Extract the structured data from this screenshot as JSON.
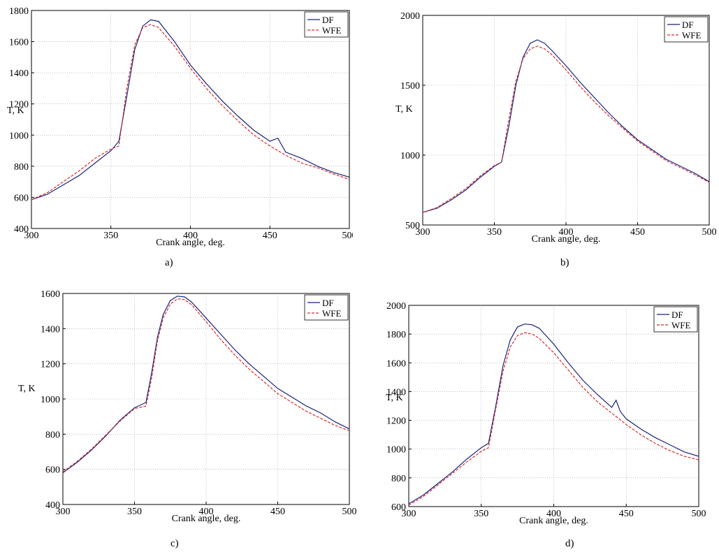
{
  "chart_data": [
    {
      "type": "line",
      "panel_label": "a)",
      "xlabel": "Crank angle, deg.",
      "ylabel": "T, K",
      "xlim": [
        300,
        500
      ],
      "ylim": [
        400,
        1800
      ],
      "x_ticks": [
        300,
        350,
        400,
        450,
        500
      ],
      "y_ticks": [
        400,
        600,
        800,
        1000,
        1200,
        1400,
        1600,
        1800
      ],
      "grid": true,
      "legend_position": "top-right",
      "series": [
        {
          "name": "DF",
          "color": "#1a237e",
          "style": "solid",
          "x": [
            300,
            310,
            320,
            330,
            340,
            350,
            355,
            360,
            365,
            370,
            375,
            380,
            390,
            400,
            410,
            420,
            430,
            440,
            450,
            455,
            460,
            470,
            480,
            490,
            500
          ],
          "y": [
            585,
            620,
            680,
            740,
            820,
            900,
            960,
            1250,
            1550,
            1700,
            1740,
            1730,
            1600,
            1450,
            1330,
            1220,
            1120,
            1030,
            960,
            980,
            890,
            850,
            800,
            760,
            730
          ]
        },
        {
          "name": "WFE",
          "color": "#d32f2f",
          "style": "dashed",
          "x": [
            300,
            310,
            320,
            330,
            340,
            350,
            355,
            360,
            365,
            370,
            375,
            380,
            390,
            400,
            410,
            420,
            430,
            440,
            450,
            460,
            470,
            480,
            490,
            500
          ],
          "y": [
            585,
            630,
            700,
            770,
            850,
            910,
            930,
            1300,
            1580,
            1690,
            1710,
            1690,
            1570,
            1430,
            1300,
            1190,
            1090,
            1000,
            930,
            870,
            820,
            790,
            750,
            715
          ]
        }
      ]
    },
    {
      "type": "line",
      "panel_label": "b)",
      "xlabel": "Crank angle, deg.",
      "ylabel": "T, K",
      "xlim": [
        300,
        500
      ],
      "ylim": [
        500,
        2000
      ],
      "x_ticks": [
        300,
        350,
        400,
        450,
        500
      ],
      "y_ticks": [
        500,
        1000,
        1500,
        2000
      ],
      "grid": true,
      "legend_position": "top-right",
      "series": [
        {
          "name": "DF",
          "color": "#1a237e",
          "style": "solid",
          "x": [
            300,
            310,
            320,
            330,
            340,
            350,
            355,
            360,
            365,
            370,
            375,
            380,
            385,
            390,
            400,
            410,
            420,
            430,
            440,
            450,
            460,
            470,
            480,
            490,
            500
          ],
          "y": [
            590,
            620,
            680,
            750,
            840,
            920,
            950,
            1200,
            1500,
            1700,
            1800,
            1825,
            1800,
            1750,
            1640,
            1520,
            1410,
            1300,
            1200,
            1110,
            1040,
            970,
            920,
            870,
            810
          ]
        },
        {
          "name": "WFE",
          "color": "#d32f2f",
          "style": "dashed",
          "x": [
            300,
            310,
            320,
            330,
            340,
            350,
            355,
            360,
            365,
            370,
            375,
            380,
            385,
            390,
            400,
            410,
            420,
            430,
            440,
            450,
            460,
            470,
            480,
            490,
            500
          ],
          "y": [
            590,
            625,
            690,
            760,
            850,
            925,
            950,
            1250,
            1530,
            1690,
            1760,
            1780,
            1760,
            1720,
            1610,
            1490,
            1380,
            1280,
            1190,
            1100,
            1030,
            960,
            910,
            860,
            805
          ]
        }
      ]
    },
    {
      "type": "line",
      "panel_label": "c)",
      "xlabel": "Crank angle, deg.",
      "ylabel": "T, K",
      "xlim": [
        300,
        500
      ],
      "ylim": [
        400,
        1600
      ],
      "x_ticks": [
        300,
        350,
        400,
        450,
        500
      ],
      "y_ticks": [
        400,
        600,
        800,
        1000,
        1200,
        1400,
        1600
      ],
      "grid": true,
      "legend_position": "top-right",
      "series": [
        {
          "name": "DF",
          "color": "#1a237e",
          "style": "solid",
          "x": [
            300,
            310,
            320,
            330,
            340,
            350,
            358,
            362,
            366,
            370,
            375,
            380,
            385,
            390,
            400,
            410,
            420,
            430,
            440,
            450,
            460,
            470,
            480,
            490,
            500
          ],
          "y": [
            580,
            640,
            710,
            790,
            880,
            950,
            980,
            1150,
            1350,
            1480,
            1560,
            1585,
            1580,
            1550,
            1460,
            1370,
            1280,
            1200,
            1130,
            1060,
            1010,
            960,
            920,
            870,
            830
          ]
        },
        {
          "name": "WFE",
          "color": "#d32f2f",
          "style": "dashed",
          "x": [
            300,
            310,
            320,
            330,
            340,
            350,
            358,
            362,
            366,
            370,
            375,
            380,
            385,
            390,
            400,
            410,
            420,
            430,
            440,
            450,
            460,
            470,
            480,
            490,
            500
          ],
          "y": [
            585,
            645,
            715,
            795,
            875,
            945,
            960,
            1120,
            1330,
            1460,
            1540,
            1570,
            1565,
            1535,
            1440,
            1340,
            1250,
            1170,
            1100,
            1030,
            980,
            930,
            890,
            850,
            820
          ]
        }
      ]
    },
    {
      "type": "line",
      "panel_label": "d)",
      "xlabel": "Crank angle, deg.",
      "ylabel": "T, K",
      "xlim": [
        300,
        500
      ],
      "ylim": [
        600,
        2000
      ],
      "x_ticks": [
        300,
        350,
        400,
        450,
        500
      ],
      "y_ticks": [
        600,
        800,
        1000,
        1200,
        1400,
        1600,
        1800,
        2000
      ],
      "grid": true,
      "legend_position": "top-right",
      "series": [
        {
          "name": "DF",
          "color": "#1a237e",
          "style": "solid",
          "x": [
            300,
            310,
            320,
            330,
            340,
            350,
            355,
            360,
            365,
            370,
            375,
            380,
            385,
            390,
            400,
            410,
            420,
            430,
            440,
            443,
            446,
            450,
            460,
            470,
            480,
            490,
            500
          ],
          "y": [
            620,
            680,
            760,
            840,
            930,
            1010,
            1040,
            1300,
            1580,
            1760,
            1850,
            1870,
            1865,
            1840,
            1730,
            1600,
            1480,
            1380,
            1290,
            1340,
            1260,
            1210,
            1140,
            1080,
            1030,
            980,
            950
          ]
        },
        {
          "name": "WFE",
          "color": "#d32f2f",
          "style": "dashed",
          "x": [
            300,
            310,
            320,
            330,
            340,
            350,
            355,
            360,
            365,
            370,
            375,
            380,
            385,
            390,
            400,
            410,
            420,
            430,
            440,
            450,
            460,
            470,
            480,
            490,
            500
          ],
          "y": [
            610,
            670,
            750,
            830,
            910,
            985,
            1010,
            1280,
            1540,
            1710,
            1790,
            1810,
            1800,
            1770,
            1670,
            1550,
            1430,
            1330,
            1250,
            1170,
            1100,
            1040,
            990,
            950,
            925
          ]
        }
      ]
    }
  ]
}
